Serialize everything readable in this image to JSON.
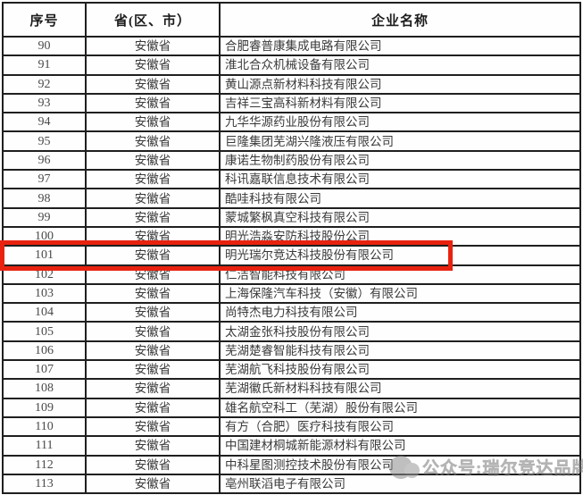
{
  "table": {
    "columns": [
      {
        "key": "index",
        "label": "序号"
      },
      {
        "key": "province",
        "label": "省(区、市）"
      },
      {
        "key": "company",
        "label": "企业名称"
      }
    ],
    "highlighted_index": "101",
    "rows": [
      {
        "index": "90",
        "province": "安徽省",
        "company": "合肥睿普康集成电路有限公司"
      },
      {
        "index": "91",
        "province": "安徽省",
        "company": "淮北合众机械设备有限公司"
      },
      {
        "index": "92",
        "province": "安徽省",
        "company": "黄山源点新材料科技有限公司"
      },
      {
        "index": "93",
        "province": "安徽省",
        "company": "吉祥三宝高科新材料有限公司"
      },
      {
        "index": "94",
        "province": "安徽省",
        "company": "九华华源药业股份有限公司"
      },
      {
        "index": "95",
        "province": "安徽省",
        "company": "巨隆集团芜湖兴隆液压有限公司"
      },
      {
        "index": "96",
        "province": "安徽省",
        "company": "康诺生物制药股份有限公司"
      },
      {
        "index": "97",
        "province": "安徽省",
        "company": "科讯嘉联信息技术有限公司"
      },
      {
        "index": "98",
        "province": "安徽省",
        "company": "酷哇科技有限公司"
      },
      {
        "index": "99",
        "province": "安徽省",
        "company": "蒙城繁枫真空科技有限公司"
      },
      {
        "index": "100",
        "province": "安徽省",
        "company": "明光浩淼安防科技股份公司"
      },
      {
        "index": "101",
        "province": "安徽省",
        "company": "明光瑞尔竞达科技股份有限公司"
      },
      {
        "index": "102",
        "province": "安徽省",
        "company": "仁洁智能科技有限公司"
      },
      {
        "index": "103",
        "province": "安徽省",
        "company": "上海保隆汽车科技（安徽）有限公司"
      },
      {
        "index": "104",
        "province": "安徽省",
        "company": "尚特杰电力科技有限公司"
      },
      {
        "index": "105",
        "province": "安徽省",
        "company": "太湖金张科技股份有限公司"
      },
      {
        "index": "106",
        "province": "安徽省",
        "company": "芜湖楚睿智能科技有限公司"
      },
      {
        "index": "107",
        "province": "安徽省",
        "company": "芜湖航飞科技股份有限公司"
      },
      {
        "index": "108",
        "province": "安徽省",
        "company": "芜湖徽氏新材料科技有限公司"
      },
      {
        "index": "109",
        "province": "安徽省",
        "company": "雄名航空科工（芜湖）股份有限公司"
      },
      {
        "index": "110",
        "province": "安徽省",
        "company": "有方（合肥）医疗科技有限公司"
      },
      {
        "index": "111",
        "province": "安徽省",
        "company": "中国建材桐城新能源材料有限公司"
      },
      {
        "index": "112",
        "province": "安徽省",
        "company": "中科星图测控技术股份有限公司"
      },
      {
        "index": "113",
        "province": "安徽省",
        "company": "亳州联滔电子有限公司"
      }
    ]
  },
  "watermark": {
    "text": "公众号:瑞尔竞达品牌"
  },
  "colors": {
    "highlight_border": "#e8220f",
    "table_border": "#1f1f1f",
    "text": "#3a3a3a",
    "watermark": "#828282"
  }
}
